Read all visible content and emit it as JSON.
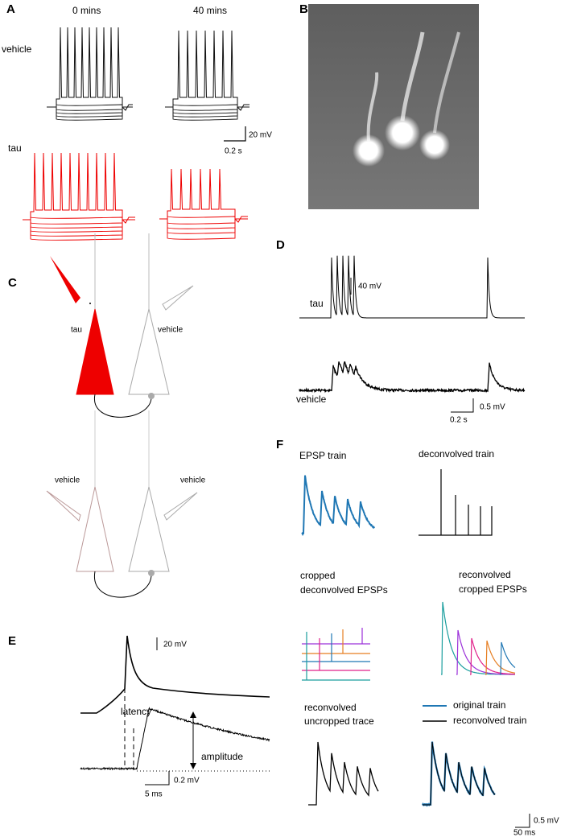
{
  "panel_a": {
    "label": "A",
    "time_0": "0 mins",
    "time_40": "40 mins",
    "row_vehicle": "vehicle",
    "row_tau": "tau",
    "scale_v": "20 mV",
    "scale_t": "0.2 s"
  },
  "panel_b": {
    "label": "B"
  },
  "panel_c": {
    "label": "C",
    "top_left": "tau",
    "top_right": "vehicle",
    "bottom_left": "vehicle",
    "bottom_right": "vehicle"
  },
  "panel_d": {
    "label": "D",
    "scale_top": "40 mV",
    "row_tau": "tau",
    "row_vehicle": "vehicle",
    "scale_v": "0.5 mV",
    "scale_t": "0.2 s"
  },
  "panel_e": {
    "label": "E",
    "scale_top": "20 mV",
    "latency": "latency",
    "amplitude": "amplitude",
    "scale_v": "0.2 mV",
    "scale_t": "5 ms"
  },
  "panel_f": {
    "label": "F",
    "epsp_train": "EPSP train",
    "deconvolved_train": "deconvolved train",
    "cropped": [
      "cropped",
      "deconvolved EPSPs"
    ],
    "reconvolved_cropped": [
      "reconvolved",
      "cropped EPSPs"
    ],
    "reconvolved_uncropped": [
      "reconvolved",
      "uncropped trace"
    ],
    "legend": [
      "original train",
      "reconvolved train"
    ],
    "scale_v": "0.5 mV",
    "scale_t": "50 ms"
  }
}
